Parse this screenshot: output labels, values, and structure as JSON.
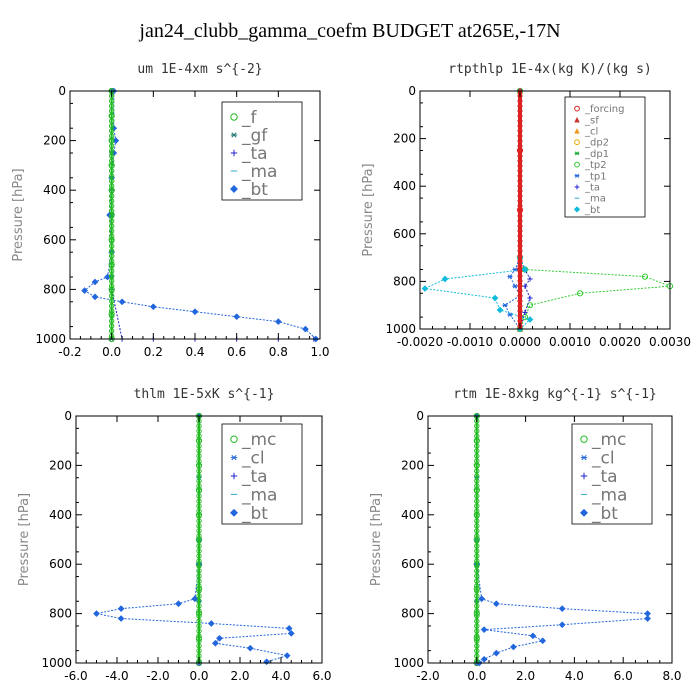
{
  "title": "jan24_clubb_gamma_coefm  BUDGET at265E,-17N",
  "chart_data": [
    {
      "type": "line",
      "title": "um   1E-4xm s^{-2}",
      "ylabel": "Pressure [hPa]",
      "xlabel": "",
      "xlim": [
        -0.2,
        1.0
      ],
      "ylim": [
        1000,
        0
      ],
      "xticks": [
        "-0.2",
        "0.0",
        "0.2",
        "0.4",
        "0.6",
        "0.8",
        "1.0"
      ],
      "xtick_values": [
        -0.2,
        0.0,
        0.2,
        0.4,
        0.6,
        0.8,
        1.0
      ],
      "yticks": [
        "0",
        "200",
        "400",
        "600",
        "800",
        "1000"
      ],
      "ytick_values": [
        0,
        200,
        400,
        600,
        800,
        1000
      ],
      "legend": {
        "position": "top-right",
        "font": 17
      },
      "series": [
        {
          "name": "_f",
          "color": "#22bb22",
          "marker": "circle",
          "x": [
            0.0,
            0.0,
            0.0,
            0.0,
            0.0,
            0.0,
            0.0,
            0.0,
            0.0,
            0.0,
            0.0
          ],
          "y": [
            0,
            100,
            200,
            300,
            400,
            500,
            600,
            700,
            800,
            900,
            1000
          ]
        },
        {
          "name": "_gf",
          "color": "#227777",
          "marker": "asterisk",
          "x": [
            0.0,
            0.0,
            0.0,
            0.0,
            0.0
          ],
          "y": [
            0,
            250,
            500,
            750,
            1000
          ]
        },
        {
          "name": "_ta",
          "color": "#2222cc",
          "marker": "plus",
          "x": [
            0.0,
            0.0,
            0.0,
            0.05,
            0.2,
            0.4,
            0.6,
            0.8,
            0.97
          ],
          "y": [
            0,
            400,
            800,
            1000,
            1000,
            1000,
            1000,
            1000,
            1000
          ]
        },
        {
          "name": "_ma",
          "color": "#33aacc",
          "marker": "dash",
          "x": [
            0.0,
            0.0,
            0.0
          ],
          "y": [
            0,
            500,
            1000
          ]
        },
        {
          "name": "_bt",
          "color": "#2266dd",
          "marker": "diamond",
          "x": [
            0.01,
            0.01,
            0.02,
            0.01,
            0.0,
            -0.01,
            0.0,
            -0.02,
            -0.08,
            -0.13,
            -0.08,
            0.05,
            0.2,
            0.4,
            0.6,
            0.8,
            0.93,
            0.98
          ],
          "y": [
            0,
            150,
            200,
            250,
            350,
            500,
            650,
            750,
            770,
            805,
            830,
            850,
            870,
            890,
            910,
            930,
            960,
            1000
          ]
        }
      ]
    },
    {
      "type": "line",
      "title": "rtpthlp   1E-4x(kg K)/(kg s)",
      "ylabel": "Pressure [hPa]",
      "xlabel": "",
      "xlim": [
        -0.002,
        0.003
      ],
      "ylim": [
        1000,
        0
      ],
      "xticks": [
        "-0.0020",
        "-0.0010",
        "0.0000",
        "0.0010",
        "0.0020",
        "0.0030"
      ],
      "xtick_values": [
        -0.002,
        -0.001,
        0.0,
        0.001,
        0.002,
        0.003
      ],
      "yticks": [
        "0",
        "200",
        "400",
        "600",
        "800",
        "1000"
      ],
      "ytick_values": [
        0,
        200,
        400,
        600,
        800,
        1000
      ],
      "legend": {
        "position": "top-right",
        "font": 10
      },
      "series": [
        {
          "name": "_forcing",
          "color": "#dd2222",
          "marker": "circle",
          "x": [
            0,
            0,
            0,
            0,
            0
          ],
          "y": [
            0,
            250,
            500,
            750,
            1000
          ]
        },
        {
          "name": "_sf",
          "color": "#cc3333",
          "marker": "triangle",
          "x": [
            0,
            0
          ],
          "y": [
            0,
            1000
          ]
        },
        {
          "name": "_cl",
          "color": "#ee9922",
          "marker": "triangle",
          "x": [
            0,
            0
          ],
          "y": [
            0,
            1000
          ]
        },
        {
          "name": "_dp2",
          "color": "#eeaa00",
          "marker": "circle",
          "x": [
            0,
            0
          ],
          "y": [
            0,
            1000
          ]
        },
        {
          "name": "_dp1",
          "color": "#11aa33",
          "marker": "asterisk",
          "x": [
            0,
            0
          ],
          "y": [
            0,
            1000
          ]
        },
        {
          "name": "_tp2",
          "color": "#33cc33",
          "marker": "circle",
          "x": [
            0,
            0,
            0.0001,
            0.0025,
            0.003,
            0.0012,
            0.0002,
            0.0001,
            0
          ],
          "y": [
            0,
            700,
            750,
            780,
            820,
            850,
            900,
            950,
            1000
          ]
        },
        {
          "name": "_tp1",
          "color": "#2266dd",
          "marker": "asterisk",
          "x": [
            0,
            0,
            -0.0001,
            -0.0002,
            -0.0001,
            0,
            -0.0003,
            -0.0002,
            0
          ],
          "y": [
            0,
            700,
            750,
            780,
            820,
            860,
            900,
            940,
            1000
          ]
        },
        {
          "name": "_ta",
          "color": "#2222cc",
          "marker": "plus",
          "x": [
            0,
            0,
            0.0001,
            0.0002,
            0.0001,
            0.0002,
            0.0001,
            0
          ],
          "y": [
            0,
            700,
            750,
            790,
            820,
            870,
            930,
            1000
          ]
        },
        {
          "name": "_ma",
          "color": "#33aacc",
          "marker": "dash",
          "x": [
            0,
            0
          ],
          "y": [
            0,
            1000
          ]
        },
        {
          "name": "_bt",
          "color": "#11bbdd",
          "marker": "diamond",
          "x": [
            0,
            0,
            0.0001,
            -0.0015,
            -0.0019,
            -0.0005,
            -0.0004,
            0.0002,
            0
          ],
          "y": [
            0,
            700,
            750,
            790,
            830,
            870,
            920,
            960,
            1000
          ]
        }
      ]
    },
    {
      "type": "line",
      "title": "thlm   1E-5xK s^{-1}",
      "ylabel": "Pressure [hPa]",
      "xlabel": "",
      "xlim": [
        -6.0,
        6.0
      ],
      "ylim": [
        1000,
        0
      ],
      "xticks": [
        "-6.0",
        "-4.0",
        "-2.0",
        "0.0",
        "2.0",
        "4.0",
        "6.0"
      ],
      "xtick_values": [
        -6,
        -4,
        -2,
        0,
        2,
        4,
        6
      ],
      "yticks": [
        "0",
        "200",
        "400",
        "600",
        "800",
        "1000"
      ],
      "ytick_values": [
        0,
        200,
        400,
        600,
        800,
        1000
      ],
      "legend": {
        "position": "top-right",
        "font": 17
      },
      "series": [
        {
          "name": "_mc",
          "color": "#22bb22",
          "marker": "circle",
          "x": [
            0,
            0,
            0,
            0,
            0,
            0,
            0,
            0,
            0,
            0,
            0
          ],
          "y": [
            0,
            100,
            200,
            300,
            400,
            500,
            600,
            700,
            800,
            900,
            1000
          ]
        },
        {
          "name": "_cl",
          "color": "#2266dd",
          "marker": "asterisk",
          "x": [
            0,
            0,
            0,
            0,
            0
          ],
          "y": [
            0,
            250,
            500,
            750,
            1000
          ]
        },
        {
          "name": "_ta",
          "color": "#2222cc",
          "marker": "plus",
          "x": [
            0,
            0,
            0
          ],
          "y": [
            0,
            500,
            1000
          ]
        },
        {
          "name": "_ma",
          "color": "#33aacc",
          "marker": "dash",
          "x": [
            0,
            0,
            0
          ],
          "y": [
            0,
            500,
            1000
          ]
        },
        {
          "name": "_bt",
          "color": "#2266dd",
          "marker": "diamond",
          "x": [
            0,
            0,
            -0.2,
            -1.0,
            -3.8,
            -5.0,
            -3.8,
            0.6,
            4.4,
            4.5,
            1.0,
            0.8,
            2.5,
            4.3,
            3.3
          ],
          "y": [
            0,
            600,
            740,
            760,
            780,
            800,
            820,
            840,
            860,
            880,
            900,
            920,
            940,
            970,
            995
          ]
        }
      ]
    },
    {
      "type": "line",
      "title": "rtm   1E-8xkg kg^{-1} s^{-1}",
      "ylabel": "Pressure [hPa]",
      "xlabel": "",
      "xlim": [
        -2.0,
        8.0
      ],
      "ylim": [
        1000,
        0
      ],
      "xticks": [
        "-2.0",
        "0.0",
        "2.0",
        "4.0",
        "6.0",
        "8.0"
      ],
      "xtick_values": [
        -2,
        0,
        2,
        4,
        6,
        8
      ],
      "yticks": [
        "0",
        "200",
        "400",
        "600",
        "800",
        "1000"
      ],
      "ytick_values": [
        0,
        200,
        400,
        600,
        800,
        1000
      ],
      "legend": {
        "position": "top-right",
        "font": 17
      },
      "series": [
        {
          "name": "_mc",
          "color": "#22bb22",
          "marker": "circle",
          "x": [
            0,
            0,
            0,
            0,
            0,
            0,
            0,
            0,
            0,
            0,
            0
          ],
          "y": [
            0,
            100,
            200,
            300,
            400,
            500,
            600,
            700,
            800,
            900,
            1000
          ]
        },
        {
          "name": "_cl",
          "color": "#2266dd",
          "marker": "asterisk",
          "x": [
            0,
            0,
            0,
            0,
            0
          ],
          "y": [
            0,
            250,
            500,
            750,
            1000
          ]
        },
        {
          "name": "_ta",
          "color": "#2222cc",
          "marker": "plus",
          "x": [
            0,
            0,
            0
          ],
          "y": [
            0,
            500,
            1000
          ]
        },
        {
          "name": "_ma",
          "color": "#33aacc",
          "marker": "dash",
          "x": [
            0,
            0,
            0
          ],
          "y": [
            0,
            500,
            1000
          ]
        },
        {
          "name": "_bt",
          "color": "#2266dd",
          "marker": "diamond",
          "x": [
            0,
            0,
            0.2,
            0.8,
            3.5,
            7.0,
            7.0,
            3.5,
            0.3,
            2.3,
            2.7,
            1.5,
            0.8,
            0.3,
            0.1
          ],
          "y": [
            0,
            600,
            740,
            760,
            780,
            800,
            820,
            845,
            865,
            890,
            910,
            935,
            960,
            985,
            1000
          ]
        }
      ]
    }
  ]
}
